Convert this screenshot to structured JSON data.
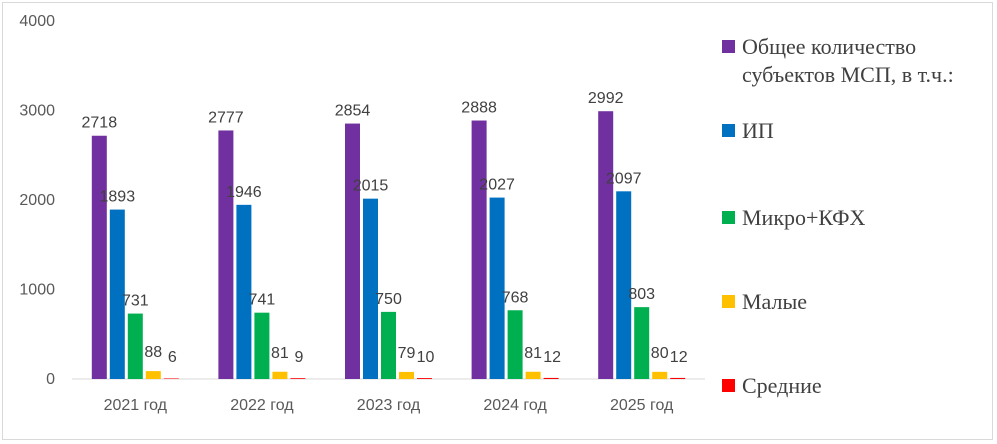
{
  "chart_data": {
    "type": "bar",
    "categories": [
      "2021 год",
      "2022 год",
      "2023 год",
      "2024 год",
      "2025 год"
    ],
    "series": [
      {
        "name": "Общее количество субъектов МСП, в т.ч.:",
        "color": "#7030a0",
        "values": [
          2718,
          2777,
          2854,
          2888,
          2992
        ]
      },
      {
        "name": "ИП",
        "color": "#0070c0",
        "values": [
          1893,
          1946,
          2015,
          2027,
          2097
        ]
      },
      {
        "name": "Микро+КФХ",
        "color": "#00b050",
        "values": [
          731,
          741,
          750,
          768,
          803
        ]
      },
      {
        "name": "Малые",
        "color": "#ffc000",
        "values": [
          88,
          81,
          79,
          81,
          80
        ]
      },
      {
        "name": "Средние",
        "color": "#ff0000",
        "values": [
          6,
          9,
          10,
          12,
          12
        ]
      }
    ],
    "yticks": [
      "0",
      "1000",
      "2000",
      "3000",
      "4000"
    ],
    "ylim": [
      0,
      4000
    ],
    "grid": false,
    "legend": "right",
    "legend_lines": [
      [
        "Общее количество",
        "субъектов МСП, в т.ч.:"
      ],
      [
        "ИП"
      ],
      [
        "Микро+КФХ"
      ],
      [
        "Малые"
      ],
      [
        "Средние"
      ]
    ],
    "title": "",
    "xlabel": "",
    "ylabel": ""
  }
}
